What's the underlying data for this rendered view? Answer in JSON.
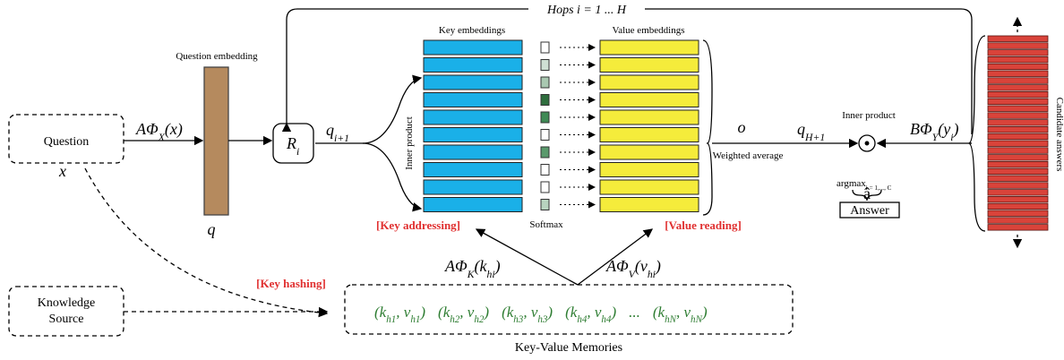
{
  "hops": "Hops i = 1 ... H",
  "question": {
    "label": "Question",
    "var": "x"
  },
  "question_embedding": {
    "title": "Question embedding",
    "var": "q"
  },
  "embed_question": [
    {
      "text": "AΦ"
    },
    {
      "sub": "X"
    },
    {
      "text": "(x)"
    }
  ],
  "r_i": [
    {
      "text": "R"
    },
    {
      "sub": "i"
    }
  ],
  "q_next": [
    {
      "text": "q"
    },
    {
      "sub": "i+1"
    }
  ],
  "inner_product_left": "Inner product",
  "key_embeddings": "Key embeddings",
  "value_embeddings": "Value embeddings",
  "softmax": "Softmax",
  "key_addressing": "[Key addressing]",
  "value_reading": "[Value reading]",
  "o": "o",
  "weighted_average": "Weighted average",
  "q_final": [
    {
      "text": "q"
    },
    {
      "sub": "H+1"
    }
  ],
  "inner_product_right": "Inner product",
  "embed_candidates": [
    {
      "text": "BΦ"
    },
    {
      "sub": "Y"
    },
    {
      "text": "(y"
    },
    {
      "sub": "i"
    },
    {
      "text": ")"
    }
  ],
  "argmax": [
    {
      "text": "argmax"
    },
    {
      "sub": "i = 1,..., C"
    }
  ],
  "a_hat": "â",
  "answer": "Answer",
  "candidate_answers": "Candidate answers",
  "embed_keys": [
    {
      "text": "AΦ"
    },
    {
      "sub": "K"
    },
    {
      "text": "(k"
    },
    {
      "sub": "hi"
    },
    {
      "text": ")"
    }
  ],
  "embed_values": [
    {
      "text": "AΦ"
    },
    {
      "sub": "V"
    },
    {
      "text": "(v"
    },
    {
      "sub": "hi"
    },
    {
      "text": ")"
    }
  ],
  "key_hashing": "[Key hashing]",
  "knowledge_source": [
    "Knowledge",
    "Source"
  ],
  "memories": {
    "items": [
      [
        {
          "text": "(k"
        },
        {
          "sub": "h1"
        },
        {
          "text": ", v"
        },
        {
          "sub": "h1"
        },
        {
          "text": ")"
        }
      ],
      [
        {
          "text": "(k"
        },
        {
          "sub": "h2"
        },
        {
          "text": ", v"
        },
        {
          "sub": "h2"
        },
        {
          "text": ")"
        }
      ],
      [
        {
          "text": "(k"
        },
        {
          "sub": "h3"
        },
        {
          "text": ", v"
        },
        {
          "sub": "h3"
        },
        {
          "text": ")"
        }
      ],
      [
        {
          "text": "(k"
        },
        {
          "sub": "h4"
        },
        {
          "text": ", v"
        },
        {
          "sub": "h4"
        },
        {
          "text": ")"
        }
      ],
      [
        {
          "text": "..."
        }
      ],
      [
        {
          "text": "(k"
        },
        {
          "sub": "hN"
        },
        {
          "text": ", v"
        },
        {
          "sub": "hN"
        },
        {
          "text": ")"
        }
      ]
    ],
    "title": "Key-Value Memories"
  }
}
